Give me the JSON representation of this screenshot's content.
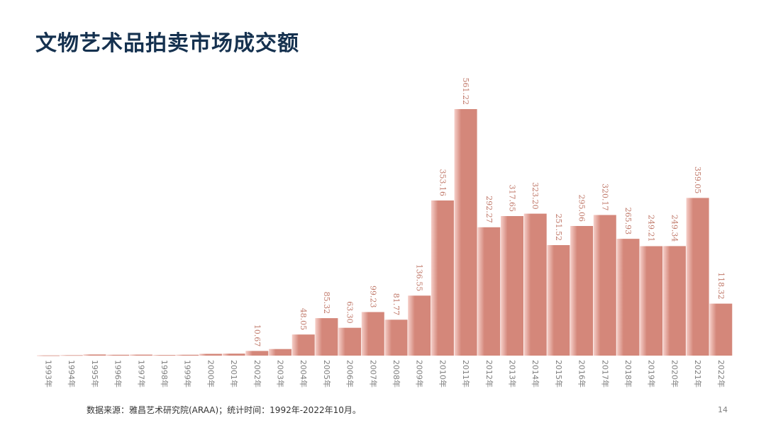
{
  "page": {
    "title": "文物艺术品拍卖市场成交额",
    "source_note": "数据来源：雅昌艺术研究院(ARAA)；统计时间：1992年-2022年10月。",
    "page_number": "14"
  },
  "colors": {
    "bar": "#d4877a",
    "bar_light": "#f5c3bc",
    "value_label": "#c0796a",
    "axis_label": "#7f7f7f",
    "title": "#15314f"
  },
  "chart_data": {
    "type": "bar",
    "title": "文物艺术品拍卖市场成交额",
    "xlabel": "",
    "ylabel": "",
    "ylim": [
      0,
      600
    ],
    "grid": false,
    "legend": "none",
    "categories": [
      "1993年",
      "1994年",
      "1995年",
      "1996年",
      "1997年",
      "1998年",
      "1999年",
      "2000年",
      "2001年",
      "2002年",
      "2003年",
      "2004年",
      "2005年",
      "2006年",
      "2007年",
      "2008年",
      "2009年",
      "2010年",
      "2011年",
      "2012年",
      "2013年",
      "2014年",
      "2015年",
      "2016年",
      "2017年",
      "2018年",
      "2019年",
      "2020年",
      "2021年",
      "2022年"
    ],
    "values": [
      0.5,
      1.0,
      2.5,
      2.0,
      2.2,
      1.5,
      2.0,
      4.0,
      4.5,
      10.67,
      15.0,
      48.05,
      85.32,
      63.3,
      99.23,
      81.77,
      136.55,
      353.16,
      561.22,
      292.27,
      317.65,
      323.2,
      251.52,
      295.06,
      320.17,
      265.93,
      249.21,
      249.34,
      359.05,
      118.32
    ],
    "data_labels": [
      "",
      "",
      "",
      "",
      "",
      "",
      "",
      "",
      "",
      "10.67",
      "",
      "48.05",
      "85.32",
      "63.30",
      "99.23",
      "81.77",
      "136.55",
      "353.16",
      "561.22",
      "292.27",
      "317.65",
      "323.20",
      "251.52",
      "295.06",
      "320.17",
      "265.93",
      "249.21",
      "249.34",
      "359.05",
      "118.32"
    ]
  }
}
